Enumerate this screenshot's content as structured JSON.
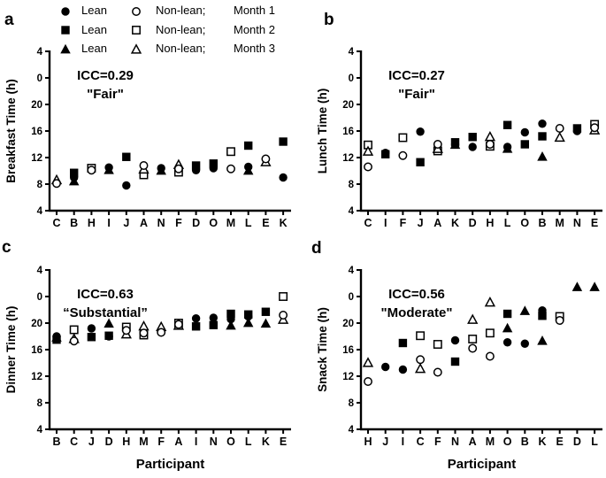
{
  "legend": {
    "rows": [
      {
        "marker": "circle",
        "filled_label": "Lean",
        "open_label": "Non-lean;",
        "month_label": "Month 1"
      },
      {
        "marker": "square",
        "filled_label": "Lean",
        "open_label": "Non-lean;",
        "month_label": "Month 2"
      },
      {
        "marker": "triangle",
        "filled_label": "Lean",
        "open_label": "Non-lean;",
        "month_label": "Month 3"
      }
    ]
  },
  "axis": {
    "tick_values": [
      4,
      8,
      12,
      16,
      20,
      24,
      28
    ],
    "tick_labels": [
      "4",
      "8",
      "12",
      "16",
      "20",
      "0",
      "4"
    ],
    "ylim": [
      4,
      28
    ]
  },
  "colors": {
    "marker": "#000000",
    "background": "#ffffff"
  },
  "chart_data": [
    {
      "type": "scatter",
      "panel": "a",
      "ylabel": "Breakfast Time (h)",
      "xlabel": "",
      "icc": "ICC=0.29",
      "rating": "\"Fair\"",
      "ylim": [
        4,
        28
      ],
      "participants": [
        "C",
        "B",
        "H",
        "I",
        "J",
        "A",
        "N",
        "F",
        "D",
        "O",
        "M",
        "L",
        "E",
        "K"
      ],
      "points": [
        {
          "p": "C",
          "m": "triangle",
          "f": "open",
          "v": 8.6
        },
        {
          "p": "C",
          "m": "circle",
          "f": "open",
          "v": 8.1
        },
        {
          "p": "B",
          "m": "square",
          "f": "filled",
          "v": 9.7
        },
        {
          "p": "B",
          "m": "circle",
          "f": "filled",
          "v": 9.0
        },
        {
          "p": "B",
          "m": "triangle",
          "f": "filled",
          "v": 8.4
        },
        {
          "p": "H",
          "m": "square",
          "f": "open",
          "v": 10.4
        },
        {
          "p": "H",
          "m": "circle",
          "f": "open",
          "v": 10.1
        },
        {
          "p": "I",
          "m": "triangle",
          "f": "filled",
          "v": 10.1
        },
        {
          "p": "I",
          "m": "circle",
          "f": "filled",
          "v": 10.5
        },
        {
          "p": "J",
          "m": "square",
          "f": "filled",
          "v": 12.1
        },
        {
          "p": "J",
          "m": "circle",
          "f": "filled",
          "v": 7.8
        },
        {
          "p": "A",
          "m": "square",
          "f": "open",
          "v": 9.4
        },
        {
          "p": "A",
          "m": "triangle",
          "f": "open",
          "v": 10.2
        },
        {
          "p": "A",
          "m": "circle",
          "f": "open",
          "v": 10.8
        },
        {
          "p": "N",
          "m": "triangle",
          "f": "filled",
          "v": 10.0
        },
        {
          "p": "N",
          "m": "circle",
          "f": "filled",
          "v": 10.4
        },
        {
          "p": "F",
          "m": "triangle",
          "f": "open",
          "v": 10.9
        },
        {
          "p": "F",
          "m": "square",
          "f": "open",
          "v": 9.8
        },
        {
          "p": "F",
          "m": "circle",
          "f": "open",
          "v": 10.3
        },
        {
          "p": "D",
          "m": "square",
          "f": "filled",
          "v": 10.8
        },
        {
          "p": "D",
          "m": "circle",
          "f": "filled",
          "v": 10.1
        },
        {
          "p": "O",
          "m": "square",
          "f": "filled",
          "v": 11.1
        },
        {
          "p": "O",
          "m": "circle",
          "f": "filled",
          "v": 10.4
        },
        {
          "p": "M",
          "m": "square",
          "f": "open",
          "v": 12.9
        },
        {
          "p": "M",
          "m": "circle",
          "f": "open",
          "v": 10.3
        },
        {
          "p": "L",
          "m": "square",
          "f": "filled",
          "v": 13.8
        },
        {
          "p": "L",
          "m": "circle",
          "f": "filled",
          "v": 10.6
        },
        {
          "p": "L",
          "m": "triangle",
          "f": "filled",
          "v": 10.0
        },
        {
          "p": "E",
          "m": "triangle",
          "f": "open",
          "v": 11.3
        },
        {
          "p": "E",
          "m": "circle",
          "f": "open",
          "v": 11.8
        },
        {
          "p": "K",
          "m": "square",
          "f": "filled",
          "v": 14.4
        },
        {
          "p": "K",
          "m": "circle",
          "f": "filled",
          "v": 9.0
        }
      ]
    },
    {
      "type": "scatter",
      "panel": "b",
      "ylabel": "Lunch Time (h)",
      "xlabel": "",
      "icc": "ICC=0.27",
      "rating": "\"Fair\"",
      "ylim": [
        4,
        28
      ],
      "participants": [
        "C",
        "I",
        "F",
        "J",
        "A",
        "K",
        "D",
        "H",
        "L",
        "O",
        "B",
        "M",
        "N",
        "E"
      ],
      "points": [
        {
          "p": "C",
          "m": "square",
          "f": "open",
          "v": 13.9
        },
        {
          "p": "C",
          "m": "triangle",
          "f": "open",
          "v": 12.9
        },
        {
          "p": "C",
          "m": "circle",
          "f": "open",
          "v": 10.6
        },
        {
          "p": "I",
          "m": "circle",
          "f": "filled",
          "v": 12.7
        },
        {
          "p": "I",
          "m": "square",
          "f": "filled",
          "v": 12.5
        },
        {
          "p": "F",
          "m": "square",
          "f": "open",
          "v": 15.0
        },
        {
          "p": "F",
          "m": "circle",
          "f": "open",
          "v": 12.3
        },
        {
          "p": "J",
          "m": "circle",
          "f": "filled",
          "v": 15.9
        },
        {
          "p": "J",
          "m": "square",
          "f": "filled",
          "v": 11.3
        },
        {
          "p": "A",
          "m": "square",
          "f": "open",
          "v": 13.0
        },
        {
          "p": "A",
          "m": "triangle",
          "f": "open",
          "v": 13.3
        },
        {
          "p": "A",
          "m": "circle",
          "f": "open",
          "v": 14.0
        },
        {
          "p": "K",
          "m": "square",
          "f": "filled",
          "v": 14.3
        },
        {
          "p": "K",
          "m": "triangle",
          "f": "filled",
          "v": 13.9
        },
        {
          "p": "K",
          "m": "circle",
          "f": "filled",
          "v": 14.0
        },
        {
          "p": "D",
          "m": "square",
          "f": "filled",
          "v": 15.1
        },
        {
          "p": "D",
          "m": "circle",
          "f": "filled",
          "v": 13.6
        },
        {
          "p": "H",
          "m": "triangle",
          "f": "open",
          "v": 15.1
        },
        {
          "p": "H",
          "m": "square",
          "f": "open",
          "v": 13.7
        },
        {
          "p": "H",
          "m": "circle",
          "f": "open",
          "v": 14.0
        },
        {
          "p": "L",
          "m": "square",
          "f": "filled",
          "v": 16.9
        },
        {
          "p": "L",
          "m": "triangle",
          "f": "filled",
          "v": 13.3
        },
        {
          "p": "L",
          "m": "circle",
          "f": "filled",
          "v": 13.6
        },
        {
          "p": "O",
          "m": "circle",
          "f": "filled",
          "v": 15.8
        },
        {
          "p": "O",
          "m": "square",
          "f": "filled",
          "v": 14.0
        },
        {
          "p": "B",
          "m": "circle",
          "f": "filled",
          "v": 17.1
        },
        {
          "p": "B",
          "m": "square",
          "f": "filled",
          "v": 15.2
        },
        {
          "p": "B",
          "m": "triangle",
          "f": "filled",
          "v": 12.1
        },
        {
          "p": "M",
          "m": "circle",
          "f": "open",
          "v": 16.4
        },
        {
          "p": "M",
          "m": "triangle",
          "f": "open",
          "v": 15.0
        },
        {
          "p": "N",
          "m": "square",
          "f": "filled",
          "v": 16.4
        },
        {
          "p": "N",
          "m": "circle",
          "f": "filled",
          "v": 16.0
        },
        {
          "p": "E",
          "m": "square",
          "f": "open",
          "v": 17.0
        },
        {
          "p": "E",
          "m": "triangle",
          "f": "open",
          "v": 16.1
        },
        {
          "p": "E",
          "m": "circle",
          "f": "open",
          "v": 16.5
        }
      ]
    },
    {
      "type": "scatter",
      "panel": "c",
      "ylabel": "Dinner Time (h)",
      "xlabel": "Participant",
      "icc": "ICC=0.63",
      "rating": "“Substantial”",
      "ylim": [
        4,
        28
      ],
      "participants": [
        "B",
        "C",
        "J",
        "D",
        "H",
        "M",
        "F",
        "A",
        "I",
        "N",
        "O",
        "L",
        "K",
        "E"
      ],
      "points": [
        {
          "p": "B",
          "m": "square",
          "f": "filled",
          "v": 17.5
        },
        {
          "p": "B",
          "m": "triangle",
          "f": "filled",
          "v": 17.8
        },
        {
          "p": "B",
          "m": "circle",
          "f": "filled",
          "v": 18.0
        },
        {
          "p": "C",
          "m": "square",
          "f": "open",
          "v": 19.0
        },
        {
          "p": "C",
          "m": "triangle",
          "f": "open",
          "v": 17.6
        },
        {
          "p": "C",
          "m": "circle",
          "f": "open",
          "v": 17.3
        },
        {
          "p": "J",
          "m": "circle",
          "f": "filled",
          "v": 19.2
        },
        {
          "p": "J",
          "m": "square",
          "f": "filled",
          "v": 17.9
        },
        {
          "p": "D",
          "m": "triangle",
          "f": "filled",
          "v": 19.9
        },
        {
          "p": "D",
          "m": "square",
          "f": "filled",
          "v": 18.1
        },
        {
          "p": "D",
          "m": "circle",
          "f": "filled",
          "v": 18.0
        },
        {
          "p": "H",
          "m": "square",
          "f": "open",
          "v": 19.4
        },
        {
          "p": "H",
          "m": "triangle",
          "f": "open",
          "v": 18.3
        },
        {
          "p": "H",
          "m": "circle",
          "f": "open",
          "v": 18.9
        },
        {
          "p": "M",
          "m": "triangle",
          "f": "open",
          "v": 19.5
        },
        {
          "p": "M",
          "m": "square",
          "f": "open",
          "v": 18.2
        },
        {
          "p": "M",
          "m": "circle",
          "f": "open",
          "v": 18.5
        },
        {
          "p": "F",
          "m": "triangle",
          "f": "open",
          "v": 19.4
        },
        {
          "p": "F",
          "m": "circle",
          "f": "open",
          "v": 18.6
        },
        {
          "p": "A",
          "m": "square",
          "f": "open",
          "v": 20.0
        },
        {
          "p": "A",
          "m": "triangle",
          "f": "open",
          "v": 19.6
        },
        {
          "p": "A",
          "m": "circle",
          "f": "open",
          "v": 19.8
        },
        {
          "p": "I",
          "m": "circle",
          "f": "filled",
          "v": 20.7
        },
        {
          "p": "I",
          "m": "square",
          "f": "filled",
          "v": 19.5
        },
        {
          "p": "N",
          "m": "circle",
          "f": "filled",
          "v": 20.8
        },
        {
          "p": "N",
          "m": "square",
          "f": "filled",
          "v": 19.7
        },
        {
          "p": "O",
          "m": "square",
          "f": "filled",
          "v": 21.4
        },
        {
          "p": "O",
          "m": "circle",
          "f": "filled",
          "v": 20.6
        },
        {
          "p": "O",
          "m": "triangle",
          "f": "filled",
          "v": 19.6
        },
        {
          "p": "L",
          "m": "square",
          "f": "filled",
          "v": 21.3
        },
        {
          "p": "L",
          "m": "circle",
          "f": "filled",
          "v": 21.0
        },
        {
          "p": "L",
          "m": "triangle",
          "f": "filled",
          "v": 20.0
        },
        {
          "p": "K",
          "m": "square",
          "f": "filled",
          "v": 21.7
        },
        {
          "p": "K",
          "m": "triangle",
          "f": "filled",
          "v": 19.9
        },
        {
          "p": "E",
          "m": "square",
          "f": "open",
          "v": 24.0
        },
        {
          "p": "E",
          "m": "triangle",
          "f": "open",
          "v": 20.5
        },
        {
          "p": "E",
          "m": "circle",
          "f": "open",
          "v": 21.2
        }
      ]
    },
    {
      "type": "scatter",
      "panel": "d",
      "ylabel": "Snack Time (h)",
      "xlabel": "Participant",
      "icc": "ICC=0.56",
      "rating": "\"Moderate\"",
      "ylim": [
        4,
        28
      ],
      "participants": [
        "H",
        "J",
        "I",
        "C",
        "F",
        "N",
        "A",
        "M",
        "O",
        "B",
        "K",
        "E",
        "D",
        "L"
      ],
      "points": [
        {
          "p": "H",
          "m": "triangle",
          "f": "open",
          "v": 14.0
        },
        {
          "p": "H",
          "m": "circle",
          "f": "open",
          "v": 11.2
        },
        {
          "p": "J",
          "m": "circle",
          "f": "filled",
          "v": 13.4
        },
        {
          "p": "I",
          "m": "square",
          "f": "filled",
          "v": 17.0
        },
        {
          "p": "I",
          "m": "circle",
          "f": "filled",
          "v": 13.0
        },
        {
          "p": "C",
          "m": "square",
          "f": "open",
          "v": 18.1
        },
        {
          "p": "C",
          "m": "circle",
          "f": "open",
          "v": 14.5
        },
        {
          "p": "C",
          "m": "triangle",
          "f": "open",
          "v": 13.1
        },
        {
          "p": "F",
          "m": "square",
          "f": "open",
          "v": 16.8
        },
        {
          "p": "F",
          "m": "circle",
          "f": "open",
          "v": 12.6
        },
        {
          "p": "N",
          "m": "circle",
          "f": "filled",
          "v": 17.4
        },
        {
          "p": "N",
          "m": "square",
          "f": "filled",
          "v": 14.2
        },
        {
          "p": "A",
          "m": "triangle",
          "f": "open",
          "v": 20.5
        },
        {
          "p": "A",
          "m": "square",
          "f": "open",
          "v": 17.6
        },
        {
          "p": "A",
          "m": "circle",
          "f": "open",
          "v": 16.2
        },
        {
          "p": "M",
          "m": "triangle",
          "f": "open",
          "v": 23.1
        },
        {
          "p": "M",
          "m": "square",
          "f": "open",
          "v": 18.5
        },
        {
          "p": "M",
          "m": "circle",
          "f": "open",
          "v": 15.0
        },
        {
          "p": "O",
          "m": "square",
          "f": "filled",
          "v": 21.4
        },
        {
          "p": "O",
          "m": "triangle",
          "f": "filled",
          "v": 19.2
        },
        {
          "p": "O",
          "m": "circle",
          "f": "filled",
          "v": 17.1
        },
        {
          "p": "B",
          "m": "triangle",
          "f": "filled",
          "v": 21.8
        },
        {
          "p": "B",
          "m": "circle",
          "f": "filled",
          "v": 16.9
        },
        {
          "p": "K",
          "m": "circle",
          "f": "filled",
          "v": 21.9
        },
        {
          "p": "K",
          "m": "square",
          "f": "filled",
          "v": 21.1
        },
        {
          "p": "K",
          "m": "triangle",
          "f": "filled",
          "v": 17.3
        },
        {
          "p": "E",
          "m": "square",
          "f": "open",
          "v": 21.0
        },
        {
          "p": "E",
          "m": "circle",
          "f": "open",
          "v": 20.4
        },
        {
          "p": "D",
          "m": "triangle",
          "f": "filled",
          "v": 25.4
        },
        {
          "p": "L",
          "m": "triangle",
          "f": "filled",
          "v": 25.4
        }
      ]
    }
  ]
}
